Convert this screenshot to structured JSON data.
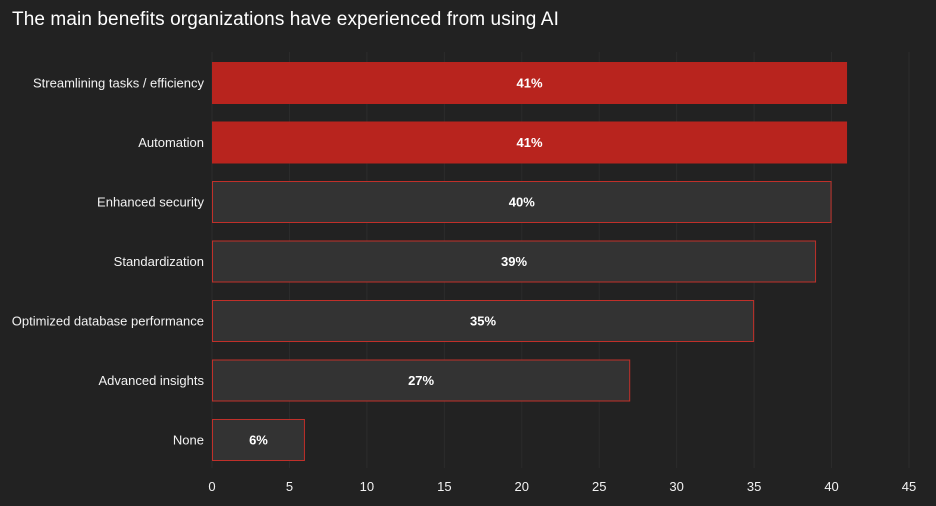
{
  "chart_data": {
    "type": "bar",
    "orientation": "horizontal",
    "title": "The main benefits organizations have experienced from using AI",
    "categories": [
      "Streamlining tasks / efficiency",
      "Automation",
      "Enhanced security",
      "Standardization",
      "Optimized database performance",
      "Advanced insights",
      "None"
    ],
    "values": [
      41,
      41,
      40,
      39,
      35,
      27,
      6
    ],
    "value_labels": [
      "41%",
      "41%",
      "40%",
      "39%",
      "35%",
      "27%",
      "6%"
    ],
    "highlighted": [
      true,
      true,
      false,
      false,
      false,
      false,
      false
    ],
    "xlim": [
      0,
      45
    ],
    "xticks": [
      0,
      5,
      10,
      15,
      20,
      25,
      30,
      35,
      40,
      45
    ],
    "xtick_labels": [
      "0",
      "5",
      "10",
      "15",
      "20",
      "25",
      "30",
      "35",
      "40",
      "45"
    ],
    "xlabel": "",
    "ylabel": "",
    "grid": "vertical",
    "colors": {
      "background": "#222222",
      "highlight_fill": "#b8241e",
      "normal_fill": "#333333",
      "bar_border": "#c0302a",
      "grid": "#2c2c2c",
      "text": "#f2f2f2"
    }
  }
}
